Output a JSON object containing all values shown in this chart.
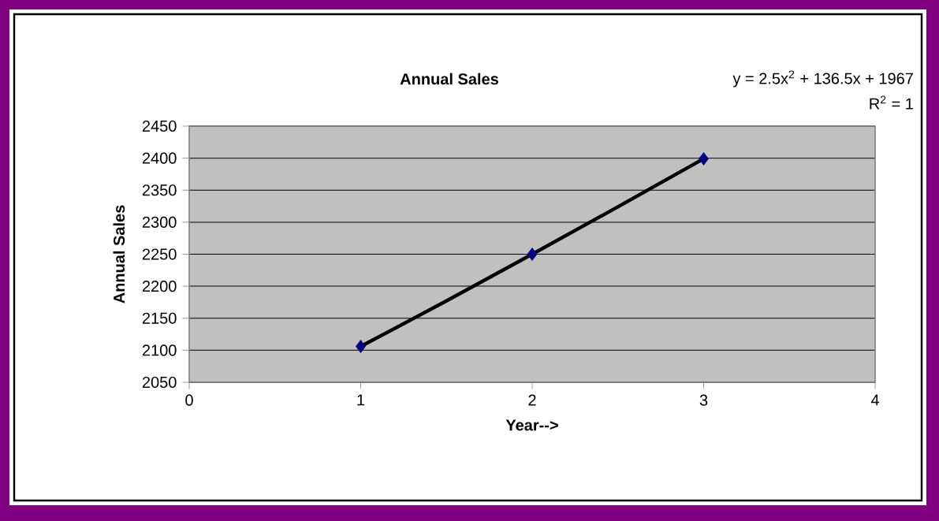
{
  "chart_data": {
    "type": "scatter",
    "title": "Annual Sales",
    "xlabel": "Year-->",
    "ylabel": "Annual Sales",
    "annotations": [
      "y = 2.5x$^{2}$ + 136.5x + 1967",
      "R$^{2}$ = 1"
    ],
    "xlim": [
      0,
      4
    ],
    "ylim": [
      2050,
      2450
    ],
    "xticks": [
      0,
      1,
      2,
      3,
      4
    ],
    "yticks": [
      2050,
      2100,
      2150,
      2200,
      2250,
      2300,
      2350,
      2400,
      2450
    ],
    "grid": "y",
    "series": [
      {
        "type": "line",
        "color": "#000000",
        "marker": "none",
        "x": [
          1,
          1.5,
          2,
          2.5,
          3
        ],
        "values": [
          2106,
          2177,
          2250,
          2324,
          2399
        ]
      },
      {
        "color": "#000080",
        "marker": "diamond",
        "x": [
          1,
          2,
          3
        ],
        "values": [
          2106,
          2250,
          2399
        ]
      }
    ]
  }
}
